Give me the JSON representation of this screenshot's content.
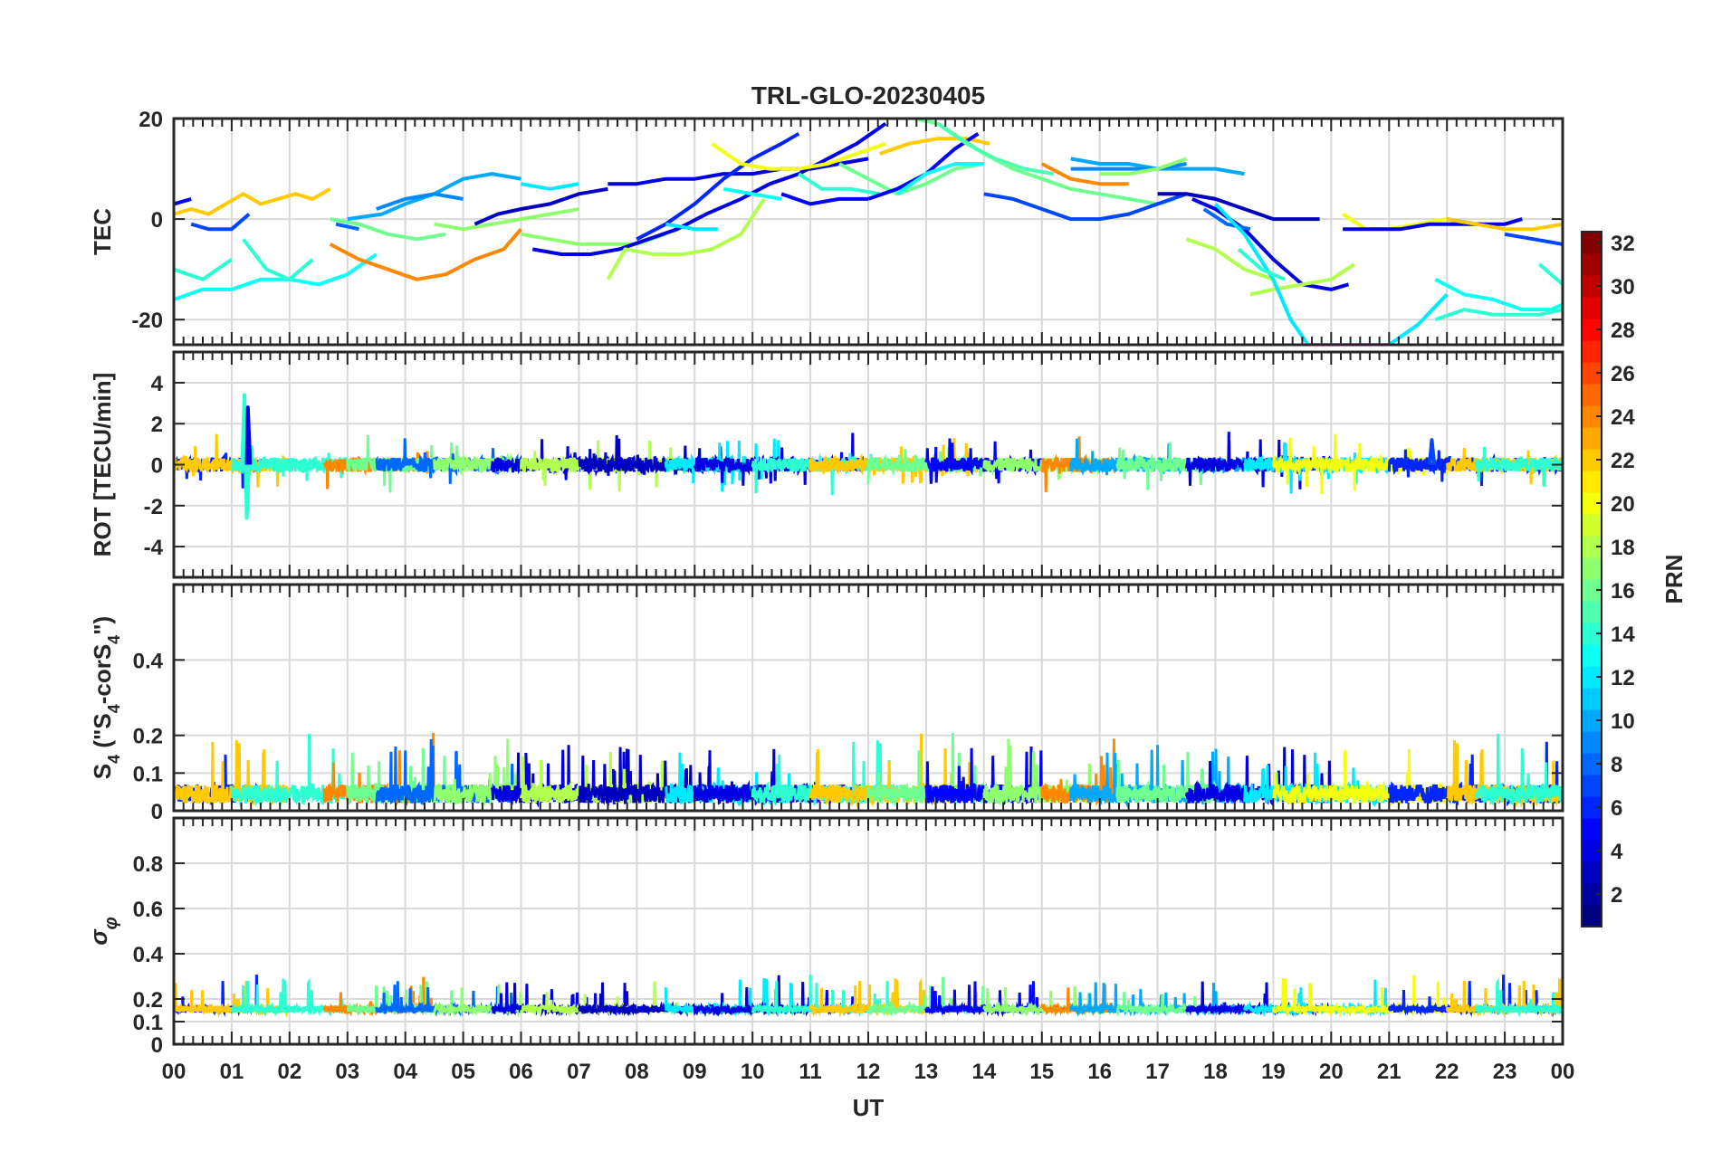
{
  "chart_data": {
    "type": "line",
    "title": "TRL-GLO-20230405",
    "xlabel": "UT",
    "x_tick_labels": [
      "00",
      "01",
      "02",
      "03",
      "04",
      "05",
      "06",
      "07",
      "08",
      "09",
      "10",
      "11",
      "12",
      "13",
      "14",
      "15",
      "16",
      "17",
      "18",
      "19",
      "20",
      "21",
      "22",
      "23",
      "00"
    ],
    "xlim": [
      0,
      24
    ],
    "grid": true,
    "colormap": "jet",
    "colorbar": {
      "label": "PRN",
      "range": [
        1,
        32
      ],
      "ticks": [
        2,
        4,
        6,
        8,
        10,
        12,
        14,
        16,
        18,
        20,
        22,
        24,
        26,
        28,
        30,
        32
      ],
      "placement": "right"
    },
    "panels": [
      {
        "name": "TEC",
        "ylabel": "TEC",
        "ylim": [
          -25,
          20
        ],
        "yticks": [
          -20,
          0,
          20
        ],
        "series": [
          {
            "prn": 22,
            "x": [
              0,
              0.3,
              0.6,
              0.9,
              1.2,
              1.5,
              1.8,
              2.1,
              2.4,
              2.7
            ],
            "y": [
              1,
              2,
              1,
              3,
              5,
              3,
              4,
              5,
              4,
              6
            ]
          },
          {
            "prn": 5,
            "x": [
              0,
              0.3
            ],
            "y": [
              3,
              4
            ]
          },
          {
            "prn": 7,
            "x": [
              0.3,
              0.6,
              1,
              1.3
            ],
            "y": [
              -1,
              -2,
              -2,
              1
            ]
          },
          {
            "prn": 13,
            "x": [
              0,
              0.5,
              1,
              1.5,
              2,
              2.5,
              3,
              3.5
            ],
            "y": [
              -16,
              -14,
              -14,
              -12,
              -12,
              -13,
              -11,
              -7
            ]
          },
          {
            "prn": 14,
            "x": [
              0,
              0.5,
              1
            ],
            "y": [
              -10,
              -12,
              -8
            ]
          },
          {
            "prn": 14,
            "x": [
              1.2,
              1.6,
              2,
              2.4
            ],
            "y": [
              -4,
              -10,
              -12,
              -8
            ]
          },
          {
            "prn": 24,
            "x": [
              2.7,
              3.2,
              3.7,
              4.2,
              4.7,
              5.2,
              5.7,
              6
            ],
            "y": [
              -5,
              -8,
              -10,
              -12,
              -11,
              -8,
              -6,
              -2
            ]
          },
          {
            "prn": 16,
            "x": [
              2.7,
              3.2,
              3.7,
              4.2,
              4.7
            ],
            "y": [
              0,
              -1,
              -3,
              -4,
              -3
            ]
          },
          {
            "prn": 8,
            "x": [
              2.8,
              3.2
            ],
            "y": [
              -1,
              -2
            ]
          },
          {
            "prn": 10,
            "x": [
              3,
              3.6,
              4,
              4.5,
              5,
              5.5,
              6
            ],
            "y": [
              0,
              1,
              3,
              5,
              8,
              9,
              8
            ]
          },
          {
            "prn": 12,
            "x": [
              6,
              6.5,
              7
            ],
            "y": [
              7,
              6,
              7
            ]
          },
          {
            "prn": 9,
            "x": [
              3.5,
              4,
              4.5,
              5
            ],
            "y": [
              2,
              4,
              5,
              4
            ]
          },
          {
            "prn": 17,
            "x": [
              4.5,
              5,
              5.5,
              6,
              6.5,
              7
            ],
            "y": [
              -1,
              -2,
              -1,
              0,
              1,
              2
            ]
          },
          {
            "prn": 3,
            "x": [
              5.2,
              5.6,
              6,
              6.5,
              7,
              7.5
            ],
            "y": [
              -1,
              1,
              2,
              3,
              5,
              6
            ]
          },
          {
            "prn": 17,
            "x": [
              6,
              6.5,
              7,
              7.5,
              8,
              8.5
            ],
            "y": [
              -3,
              -4,
              -5,
              -5,
              -5,
              -3
            ]
          },
          {
            "prn": 4,
            "x": [
              6.2,
              6.7,
              7.2,
              7.7,
              8.2,
              8.7,
              9.2,
              9.8,
              10.3,
              10.8,
              11.3,
              11.8,
              12.3
            ],
            "y": [
              -6,
              -7,
              -7,
              -6,
              -4,
              -2,
              1,
              4,
              7,
              9,
              12,
              15,
              19
            ]
          },
          {
            "prn": 4,
            "x": [
              7.5,
              8,
              8.5,
              9,
              9.5,
              10,
              10.5,
              11,
              11.5,
              12
            ],
            "y": [
              7,
              7,
              8,
              8,
              9,
              9,
              10,
              10,
              11,
              12
            ]
          },
          {
            "prn": 6,
            "x": [
              8,
              8.5,
              9,
              9.5,
              10,
              10.5,
              10.8
            ],
            "y": [
              -4,
              -1,
              3,
              8,
              12,
              15,
              17
            ]
          },
          {
            "prn": 18,
            "x": [
              7.5,
              7.8,
              8.3,
              8.8,
              9.3,
              9.8,
              10.2
            ],
            "y": [
              -12,
              -6,
              -7,
              -7,
              -6,
              -3,
              4
            ]
          },
          {
            "prn": 12,
            "x": [
              8.5,
              9,
              9.4
            ],
            "y": [
              -1,
              -2,
              -2
            ]
          },
          {
            "prn": 20,
            "x": [
              9.3,
              9.8,
              10.3,
              10.8,
              11.3,
              11.8,
              12.3
            ],
            "y": [
              15,
              11,
              10,
              10,
              11,
              13,
              15
            ]
          },
          {
            "prn": 13,
            "x": [
              9.5,
              10,
              10.5
            ],
            "y": [
              6,
              5,
              4
            ]
          },
          {
            "prn": 5,
            "x": [
              10.5,
              11,
              11.5,
              12
            ],
            "y": [
              5,
              3,
              4,
              4
            ]
          },
          {
            "prn": 14,
            "x": [
              10.8,
              11.2,
              11.7,
              12.2
            ],
            "y": [
              9,
              6,
              6,
              5
            ]
          },
          {
            "prn": 16,
            "x": [
              11.5,
              12,
              12.5,
              13,
              13.5,
              14
            ],
            "y": [
              11,
              8,
              5,
              7,
              10,
              11
            ]
          },
          {
            "prn": 22,
            "x": [
              12.2,
              12.7,
              13.2,
              13.7,
              14.1
            ],
            "y": [
              13,
              15,
              16,
              16,
              15
            ]
          },
          {
            "prn": 5,
            "x": [
              12,
              12.5,
              13,
              13.5,
              13.9
            ],
            "y": [
              4,
              6,
              9,
              14,
              17
            ]
          },
          {
            "prn": 13,
            "x": [
              12.5,
              13,
              13.5,
              14
            ],
            "y": [
              5,
              9,
              11,
              11
            ]
          },
          {
            "prn": 16,
            "x": [
              12.8,
              13.2,
              13.6,
              14,
              14.5,
              15,
              15.5,
              16,
              16.5,
              17,
              17.3
            ],
            "y": [
              20,
              19,
              16,
              13,
              10,
              8,
              6,
              5,
              4,
              3,
              4
            ]
          },
          {
            "prn": 15,
            "x": [
              13.2,
              13.7,
              14.2,
              14.7,
              15.2
            ],
            "y": [
              19,
              15,
              12,
              10,
              9
            ]
          },
          {
            "prn": 7,
            "x": [
              14,
              14.5,
              15,
              15.5,
              16,
              16.5,
              17,
              17.5,
              18
            ],
            "y": [
              5,
              4,
              2,
              0,
              0,
              1,
              3,
              5,
              4
            ]
          },
          {
            "prn": 24,
            "x": [
              15,
              15.5,
              16,
              16.5
            ],
            "y": [
              11,
              8,
              7,
              7
            ]
          },
          {
            "prn": 10,
            "x": [
              15.5,
              16,
              16.5,
              17,
              17.5,
              18,
              18.5
            ],
            "y": [
              12,
              11,
              11,
              10,
              10,
              10,
              9
            ]
          },
          {
            "prn": 9,
            "x": [
              15.5,
              16,
              16.5,
              17,
              17.5
            ],
            "y": [
              10,
              10,
              10,
              10,
              11
            ]
          },
          {
            "prn": 17,
            "x": [
              16,
              16.5,
              17,
              17.5
            ],
            "y": [
              9,
              9,
              10,
              12
            ]
          },
          {
            "prn": 3,
            "x": [
              17,
              17.5,
              18,
              18.5,
              19,
              19.5,
              19.8
            ],
            "y": [
              5,
              5,
              4,
              2,
              0,
              0,
              0
            ]
          },
          {
            "prn": 4,
            "x": [
              17.6,
              18,
              18.5,
              19,
              19.5,
              20,
              20.3
            ],
            "y": [
              4,
              2,
              -2,
              -8,
              -13,
              -14,
              -13
            ]
          },
          {
            "prn": 8,
            "x": [
              17.8,
              18.2,
              18.6
            ],
            "y": [
              2,
              -1,
              -2
            ]
          },
          {
            "prn": 18,
            "x": [
              17.5,
              18,
              18.5,
              19
            ],
            "y": [
              -4,
              -6,
              -10,
              -12
            ]
          },
          {
            "prn": 18,
            "x": [
              18.6,
              19,
              19.5,
              20,
              20.4
            ],
            "y": [
              -15,
              -14,
              -13,
              -12,
              -9
            ]
          },
          {
            "prn": 12,
            "x": [
              18,
              18.5,
              19,
              19.3,
              19.6,
              20,
              20.5,
              21,
              21.5,
              22
            ],
            "y": [
              3,
              -3,
              -12,
              -20,
              -25,
              -25,
              -25,
              -25,
              -21,
              -15
            ]
          },
          {
            "prn": 14,
            "x": [
              18.4,
              18.8,
              19.2
            ],
            "y": [
              -6,
              -10,
              -12
            ]
          },
          {
            "prn": 20,
            "x": [
              20.2,
              20.6,
              21,
              21.5,
              22,
              22.4
            ],
            "y": [
              1,
              -2,
              -2,
              -1,
              0,
              -1
            ]
          },
          {
            "prn": 4,
            "x": [
              20.2,
              20.7,
              21.2,
              21.7,
              22.2,
              22.6
            ],
            "y": [
              -2,
              -2,
              -2,
              -1,
              -1,
              -1
            ]
          },
          {
            "prn": 4,
            "x": [
              22,
              22.5,
              23,
              23.3
            ],
            "y": [
              0,
              -1,
              -1,
              0
            ]
          },
          {
            "prn": 22,
            "x": [
              22,
              22.5,
              23,
              23.5,
              24
            ],
            "y": [
              0,
              -1,
              -2,
              -2,
              -1
            ]
          },
          {
            "prn": 7,
            "x": [
              23,
              23.5,
              24
            ],
            "y": [
              -3,
              -4,
              -5
            ]
          },
          {
            "prn": 13,
            "x": [
              21.8,
              22.3,
              22.8,
              23.3,
              23.8,
              24
            ],
            "y": [
              -12,
              -15,
              -16,
              -18,
              -18,
              -17
            ]
          },
          {
            "prn": 14,
            "x": [
              21.8,
              22.3,
              22.8,
              23.2,
              23.6,
              24
            ],
            "y": [
              -20,
              -18,
              -19,
              -19,
              -19,
              -18
            ]
          },
          {
            "prn": 14,
            "x": [
              23.6,
              24
            ],
            "y": [
              -9,
              -13
            ]
          }
        ]
      },
      {
        "name": "ROT",
        "ylabel": "ROT [TECU/min]",
        "ylim": [
          -5.5,
          5.5
        ],
        "yticks": [
          -4,
          -2,
          0,
          2,
          4
        ],
        "series": [
          {
            "prn": 14,
            "x": [
              1.18,
              1.22,
              1.26,
              1.3
            ],
            "y": [
              0,
              3.4,
              -2.6,
              0
            ]
          },
          {
            "prn": 4,
            "x": [
              1.26,
              1.28,
              1.32
            ],
            "y": [
              0,
              2.8,
              0
            ]
          },
          {
            "prn": 7,
            "x": [
              21.7,
              21.74,
              21.78
            ],
            "y": [
              0,
              1.2,
              0
            ]
          }
        ]
      },
      {
        "name": "S4",
        "ylabel": "S4 (\"S4-corS4\")",
        "ylim": [
          0,
          0.6
        ],
        "yticks": [
          0,
          0.1,
          0.2,
          0.4
        ],
        "series": []
      },
      {
        "name": "sigma-phi",
        "ylabel": "σφ",
        "ylim": [
          0,
          1
        ],
        "yticks": [
          0,
          0.1,
          0.2,
          0.4,
          0.6,
          0.8
        ],
        "series": []
      }
    ]
  }
}
